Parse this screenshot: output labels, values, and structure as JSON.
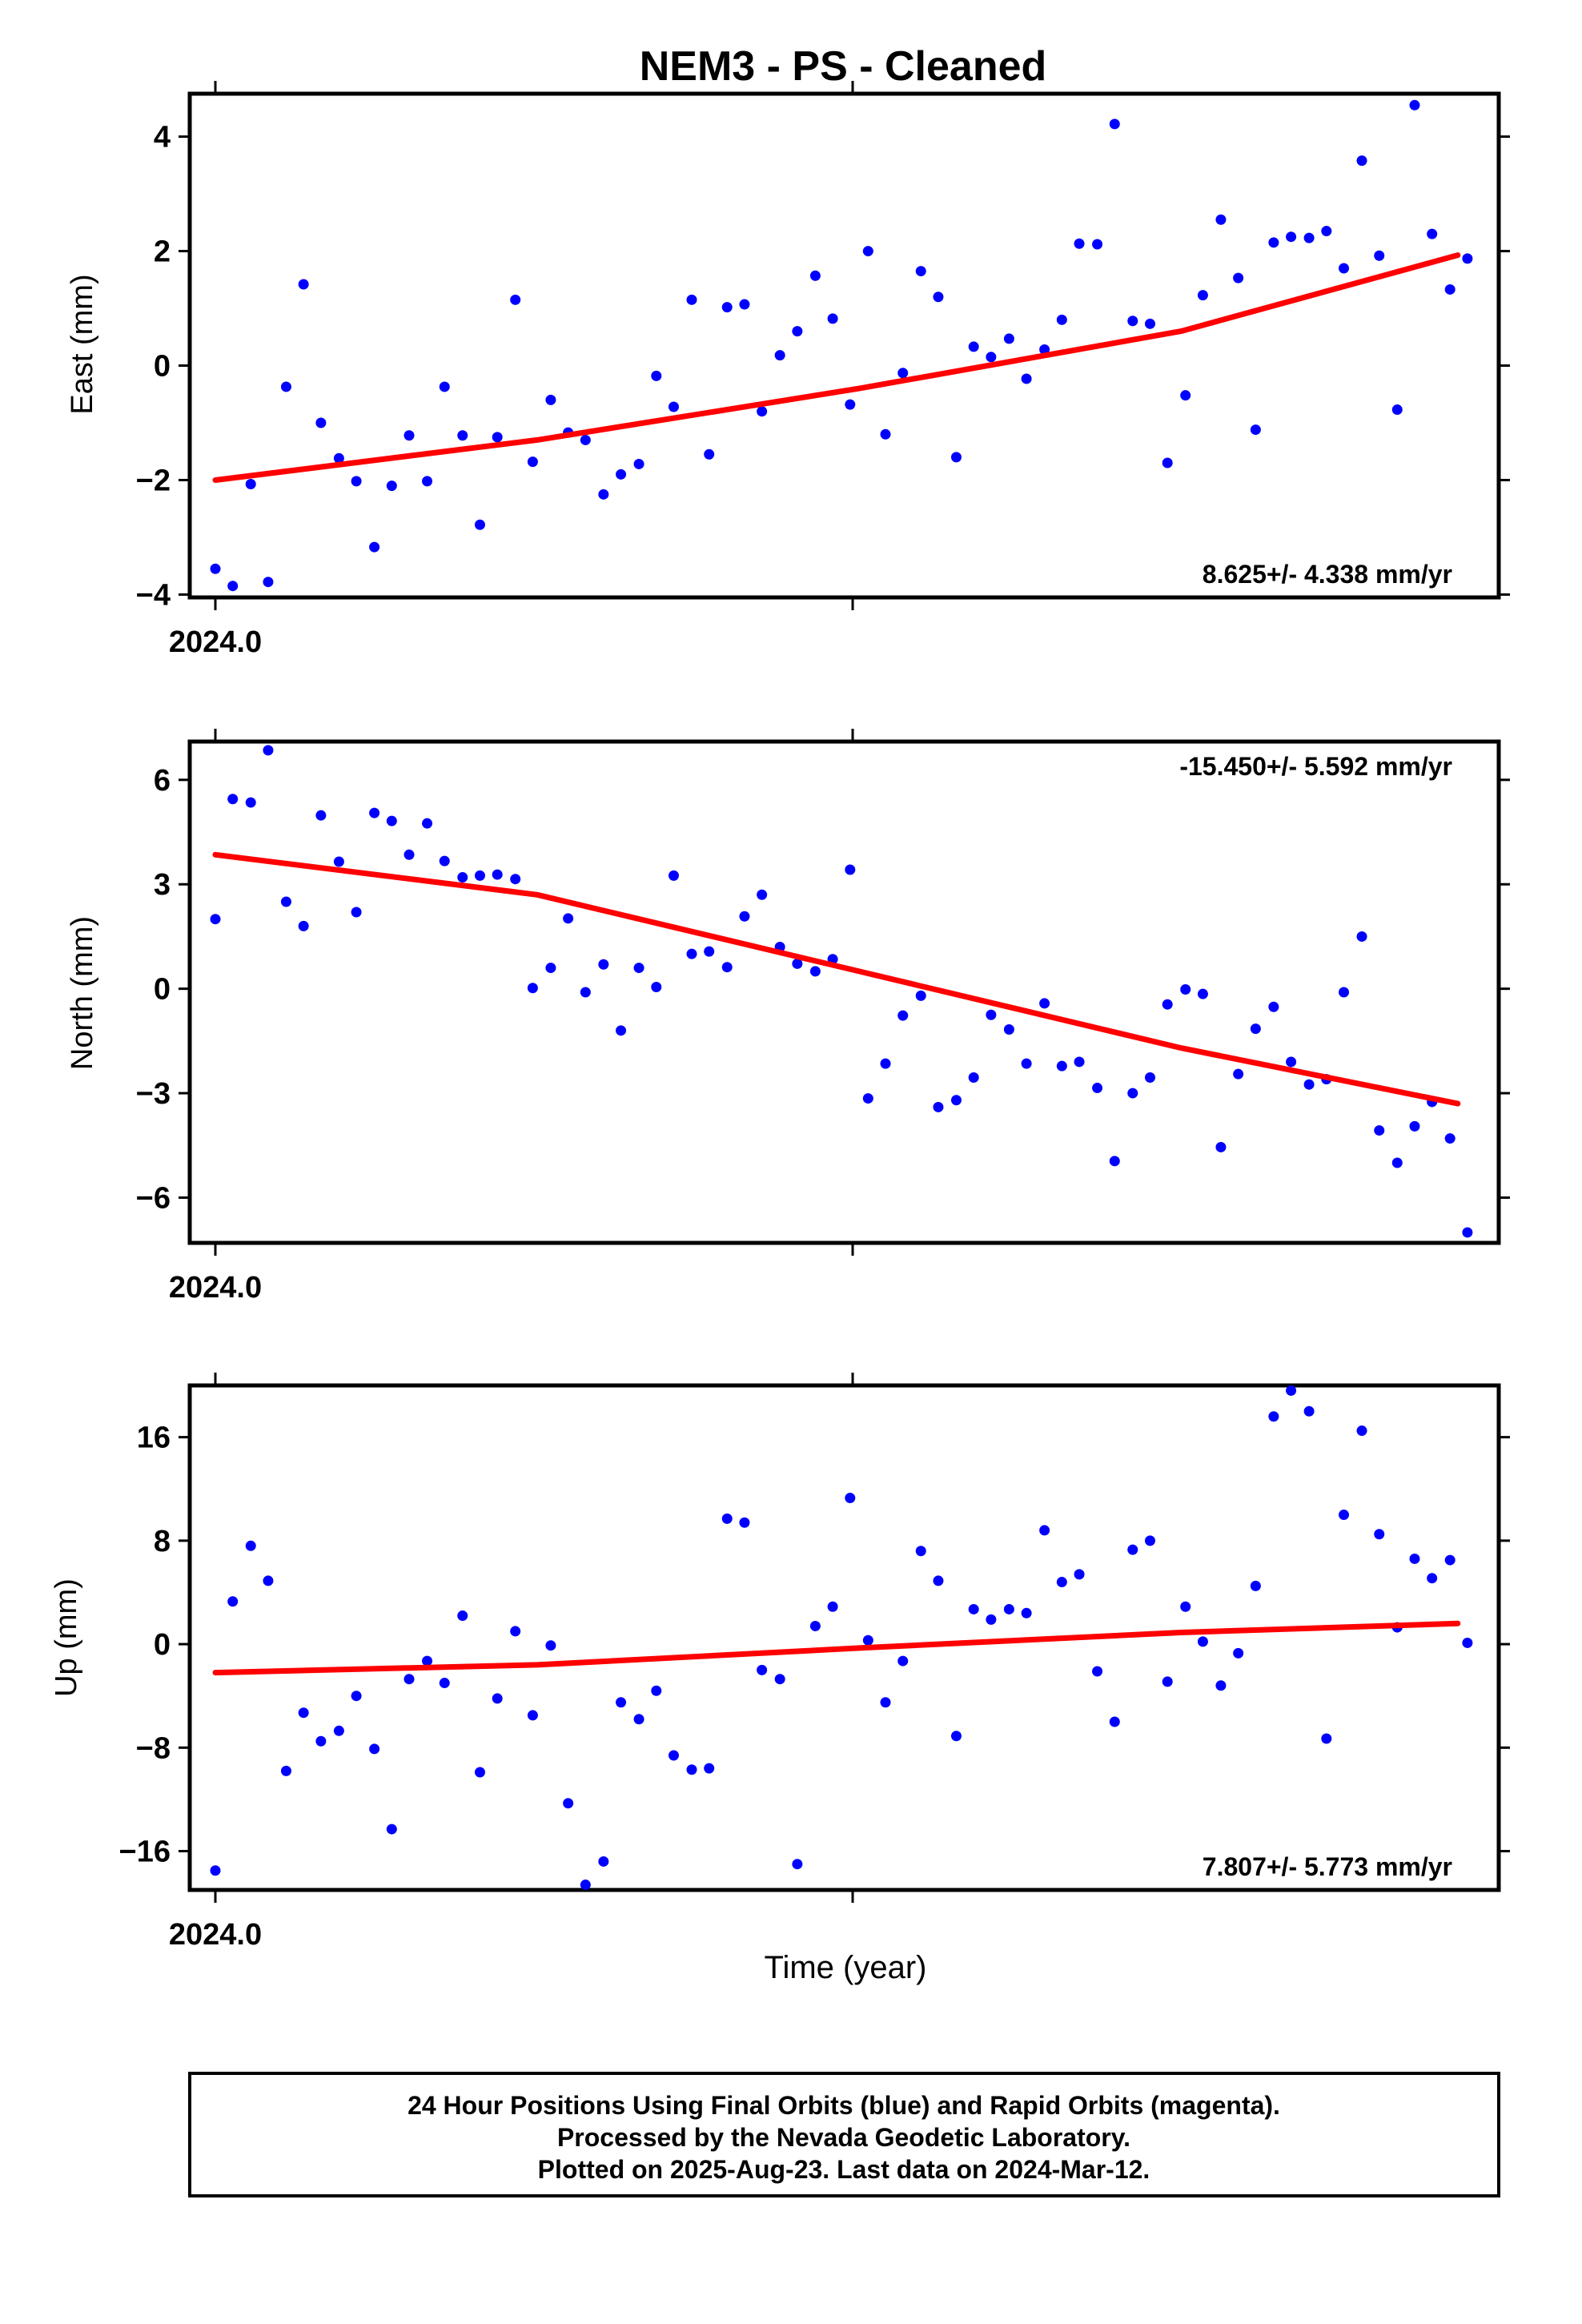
{
  "title": "NEM3  - PS - Cleaned",
  "xlabel": "Time (year)",
  "x_tick_label": "2024.0",
  "footer": {
    "line1": "24 Hour Positions Using Final Orbits (blue) and Rapid Orbits (magenta).",
    "line2": "Processed by the Nevada Geodetic Laboratory.",
    "line3": "Plotted on 2025-Aug-23. Last data on 2024-Mar-12."
  },
  "colors": {
    "points": "#0000ff",
    "trend": "#ff0000",
    "frame": "#000000"
  },
  "chart_data": [
    {
      "type": "scatter",
      "ylabel": "East (mm)",
      "rate_label": "8.625+/- 4.338 mm/yr",
      "rate_position": "bottom-right",
      "xlim": [
        2024.0,
        2024.197
      ],
      "ylim": [
        -4.05,
        4.75
      ],
      "yticks": [
        -4,
        -2,
        0,
        2,
        4
      ],
      "trend": [
        [
          2024.0,
          -2.0
        ],
        [
          2024.05,
          -1.3
        ],
        [
          2024.1,
          -0.4
        ],
        [
          2024.15,
          0.6
        ],
        [
          2024.193,
          1.93
        ]
      ],
      "x": [
        2024.0,
        2024.0027,
        2024.0055,
        2024.0082,
        2024.011,
        2024.0137,
        2024.0164,
        2024.0192,
        2024.0219,
        2024.0247,
        2024.0274,
        2024.0301,
        2024.0329,
        2024.0356,
        2024.0384,
        2024.0411,
        2024.0438,
        2024.0466,
        2024.0493,
        2024.0521,
        2024.0548,
        2024.0575,
        2024.0603,
        2024.063,
        2024.0658,
        2024.0685,
        2024.0712,
        2024.074,
        2024.0767,
        2024.0795,
        2024.0822,
        2024.0849,
        2024.0877,
        2024.0904,
        2024.0932,
        2024.0959,
        2024.0986,
        2024.1014,
        2024.1041,
        2024.1068,
        2024.1096,
        2024.1123,
        2024.1151,
        2024.1178,
        2024.1205,
        2024.1233,
        2024.126,
        2024.1288,
        2024.1315,
        2024.1342,
        2024.137,
        2024.1397,
        2024.1425,
        2024.1452,
        2024.1479,
        2024.1507,
        2024.1534,
        2024.1562,
        2024.1589,
        2024.1616,
        2024.1644,
        2024.1671,
        2024.1699,
        2024.1726,
        2024.1753,
        2024.1781,
        2024.1808,
        2024.1836,
        2024.1863,
        2024.189,
        2024.1918,
        2024.1945
      ],
      "y": [
        -3.55,
        -3.85,
        -2.07,
        -3.78,
        -0.37,
        1.42,
        -1.0,
        -1.62,
        -2.02,
        -3.17,
        -2.1,
        -1.22,
        -2.02,
        -0.37,
        -1.22,
        -2.78,
        -1.25,
        1.15,
        -1.68,
        -0.6,
        -1.17,
        -1.3,
        -2.25,
        -1.9,
        -1.72,
        -0.18,
        -0.72,
        1.15,
        -1.55,
        1.02,
        1.07,
        -0.8,
        0.18,
        0.6,
        1.57,
        0.82,
        -0.68,
        2.0,
        -1.2,
        -0.13,
        1.65,
        1.2,
        -1.6,
        0.33,
        0.15,
        0.47,
        -0.23,
        0.28,
        0.8,
        2.13,
        2.12,
        4.22,
        0.78,
        0.73,
        -1.7,
        -0.52,
        1.23,
        2.55,
        1.53,
        -1.12,
        2.15,
        2.25,
        2.23,
        2.35,
        1.7,
        3.58,
        1.92,
        -0.77,
        4.55,
        2.3,
        1.33,
        1.87
      ]
    },
    {
      "type": "scatter",
      "ylabel": "North (mm)",
      "rate_label": "-15.450+/- 5.592 mm/yr",
      "rate_position": "top-right",
      "xlim": [
        2024.0,
        2024.197
      ],
      "ylim": [
        -7.3,
        7.1
      ],
      "yticks": [
        -6,
        -3,
        0,
        3,
        6
      ],
      "trend": [
        [
          2024.0,
          3.85
        ],
        [
          2024.05,
          2.7
        ],
        [
          2024.1,
          0.5
        ],
        [
          2024.15,
          -1.7
        ],
        [
          2024.193,
          -3.3
        ]
      ],
      "x": [
        2024.0,
        2024.0027,
        2024.0055,
        2024.0082,
        2024.011,
        2024.0137,
        2024.0164,
        2024.0192,
        2024.0219,
        2024.0247,
        2024.0274,
        2024.0301,
        2024.0329,
        2024.0356,
        2024.0384,
        2024.0411,
        2024.0438,
        2024.0466,
        2024.0493,
        2024.0521,
        2024.0548,
        2024.0575,
        2024.0603,
        2024.063,
        2024.0658,
        2024.0685,
        2024.0712,
        2024.074,
        2024.0767,
        2024.0795,
        2024.0822,
        2024.0849,
        2024.0877,
        2024.0904,
        2024.0932,
        2024.0959,
        2024.0986,
        2024.1014,
        2024.1041,
        2024.1068,
        2024.1096,
        2024.1123,
        2024.1151,
        2024.1178,
        2024.1205,
        2024.1233,
        2024.126,
        2024.1288,
        2024.1315,
        2024.1342,
        2024.137,
        2024.1397,
        2024.1425,
        2024.1452,
        2024.1479,
        2024.1507,
        2024.1534,
        2024.1562,
        2024.1589,
        2024.1616,
        2024.1644,
        2024.1671,
        2024.1699,
        2024.1726,
        2024.1753,
        2024.1781,
        2024.1808,
        2024.1836,
        2024.1863,
        2024.189,
        2024.1918,
        2024.1945
      ],
      "y": [
        2.0,
        5.45,
        5.35,
        6.85,
        2.5,
        1.8,
        4.98,
        3.65,
        2.2,
        5.05,
        4.82,
        3.85,
        4.75,
        3.67,
        3.2,
        3.25,
        3.28,
        3.15,
        0.02,
        0.6,
        2.02,
        -0.1,
        0.7,
        -1.2,
        0.6,
        0.05,
        3.25,
        1.0,
        1.07,
        0.62,
        2.08,
        2.7,
        1.2,
        0.72,
        0.5,
        0.85,
        3.42,
        -3.15,
        -2.15,
        -0.77,
        -0.2,
        -3.4,
        -3.2,
        -2.55,
        -0.75,
        -1.17,
        -2.15,
        -0.42,
        -2.22,
        -2.1,
        -2.85,
        -4.95,
        -3.0,
        -2.55,
        -0.45,
        -0.02,
        -0.15,
        -4.55,
        -2.45,
        -1.15,
        -0.52,
        -2.1,
        -2.75,
        -2.6,
        -0.1,
        1.5,
        -4.07,
        -5.0,
        -3.95,
        -3.25,
        -4.3,
        -7.0
      ]
    },
    {
      "type": "scatter",
      "ylabel": "Up (mm)",
      "rate_label": "7.807+/- 5.773 mm/yr",
      "rate_position": "bottom-right",
      "xlim": [
        2024.0,
        2024.197
      ],
      "ylim": [
        -19.0,
        20.0
      ],
      "yticks": [
        -16,
        -8,
        0,
        8,
        16
      ],
      "trend": [
        [
          2024.0,
          -2.2
        ],
        [
          2024.05,
          -1.6
        ],
        [
          2024.1,
          -0.3
        ],
        [
          2024.15,
          0.9
        ],
        [
          2024.193,
          1.6
        ]
      ],
      "x": [
        2024.0,
        2024.0027,
        2024.0055,
        2024.0082,
        2024.011,
        2024.0137,
        2024.0164,
        2024.0192,
        2024.0219,
        2024.0247,
        2024.0274,
        2024.0301,
        2024.0329,
        2024.0356,
        2024.0384,
        2024.0411,
        2024.0438,
        2024.0466,
        2024.0493,
        2024.0521,
        2024.0548,
        2024.0575,
        2024.0603,
        2024.063,
        2024.0658,
        2024.0685,
        2024.0712,
        2024.074,
        2024.0767,
        2024.0795,
        2024.0822,
        2024.0849,
        2024.0877,
        2024.0904,
        2024.0932,
        2024.0959,
        2024.0986,
        2024.1014,
        2024.1041,
        2024.1068,
        2024.1096,
        2024.1123,
        2024.1151,
        2024.1178,
        2024.1205,
        2024.1233,
        2024.126,
        2024.1288,
        2024.1315,
        2024.1342,
        2024.137,
        2024.1397,
        2024.1425,
        2024.1452,
        2024.1479,
        2024.1507,
        2024.1534,
        2024.1562,
        2024.1589,
        2024.1616,
        2024.1644,
        2024.1671,
        2024.1699,
        2024.1726,
        2024.1753,
        2024.1781,
        2024.1808,
        2024.1836,
        2024.1863,
        2024.189,
        2024.1918,
        2024.1945
      ],
      "y": [
        -17.5,
        3.3,
        7.6,
        4.9,
        -9.8,
        -5.3,
        -7.5,
        -6.7,
        -4.0,
        -8.1,
        -14.3,
        -2.7,
        -1.3,
        -3.0,
        2.2,
        -9.9,
        -4.2,
        1.0,
        -5.5,
        -0.1,
        -12.3,
        -18.6,
        -16.8,
        -4.5,
        -5.8,
        -3.6,
        -8.6,
        -9.7,
        -9.6,
        9.7,
        9.4,
        -2.0,
        -2.7,
        -17.0,
        1.4,
        2.9,
        11.3,
        0.3,
        -4.5,
        -1.3,
        7.2,
        4.9,
        -7.1,
        2.7,
        1.9,
        2.7,
        2.4,
        8.8,
        4.8,
        5.4,
        -2.1,
        -6.0,
        7.3,
        8.0,
        -2.9,
        2.9,
        0.2,
        -3.2,
        -0.7,
        4.5,
        17.6,
        19.6,
        18.0,
        -7.3,
        10.0,
        16.5,
        8.5,
        1.3,
        6.6,
        5.1,
        6.5,
        0.1
      ]
    }
  ]
}
